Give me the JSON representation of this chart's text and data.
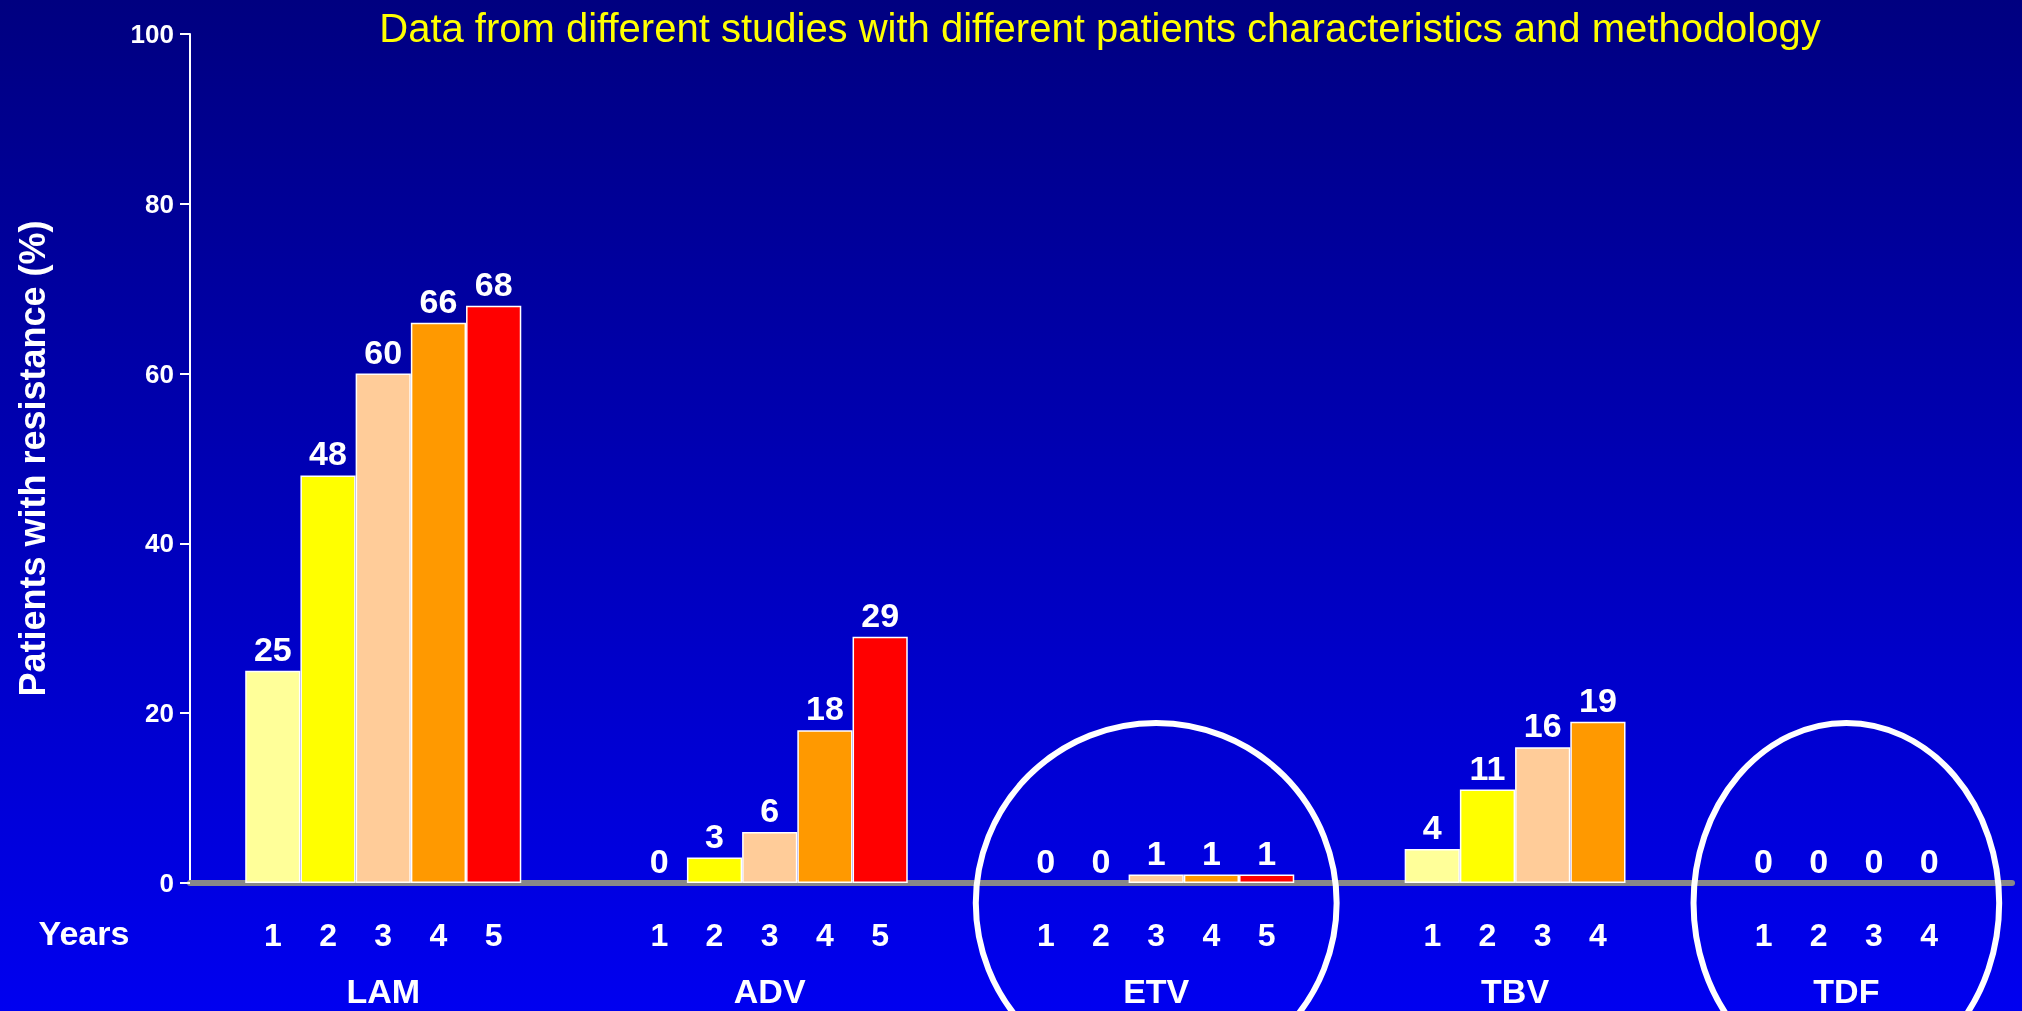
{
  "chart_data": {
    "type": "bar",
    "title": "Data from different studies with different patients characteristics and methodology",
    "ylabel": "Patients with resistance (%)",
    "categories": [
      null,
      "1",
      "2",
      "3",
      "4",
      "5",
      null,
      null,
      "1",
      "2",
      "3",
      "4",
      "5",
      null,
      null,
      "1",
      "2",
      "3",
      "4",
      "5",
      null,
      null,
      "1",
      "2",
      "3",
      "4",
      null,
      null,
      "1",
      "2",
      "3",
      "4",
      null
    ],
    "values": [
      null,
      25,
      48,
      60,
      66,
      68,
      null,
      null,
      0,
      3,
      6,
      18,
      29,
      null,
      null,
      0,
      0,
      1,
      1,
      1,
      null,
      null,
      4,
      11,
      16,
      19,
      null,
      null,
      0,
      0,
      0,
      0,
      null
    ],
    "colors": [
      null,
      "#ffff99",
      "#ffff00",
      "#ffcc99",
      "#ff9900",
      "#ff0000",
      null,
      null,
      "#ffff99",
      "#ffff00",
      "#ffcc99",
      "#ff9900",
      "#ff0000",
      null,
      null,
      "#ffff99",
      "#ffff00",
      "#ffcc99",
      "#ff9900",
      "#ff0000",
      null,
      null,
      "#ffff99",
      "#ffff00",
      "#ffcc99",
      "#ff9900",
      null,
      null,
      "#ffff99",
      "#ffff00",
      "#ffcc99",
      "#ff9900",
      null
    ],
    "ylim": [
      0,
      100
    ],
    "yticks": [
      0,
      20,
      40,
      60,
      80,
      100
    ],
    "data_labels": true,
    "grid": false,
    "annotations": [
      "Years",
      "LAM",
      "ADV",
      "ETV",
      "TBV",
      "TDF"
    ]
  }
}
